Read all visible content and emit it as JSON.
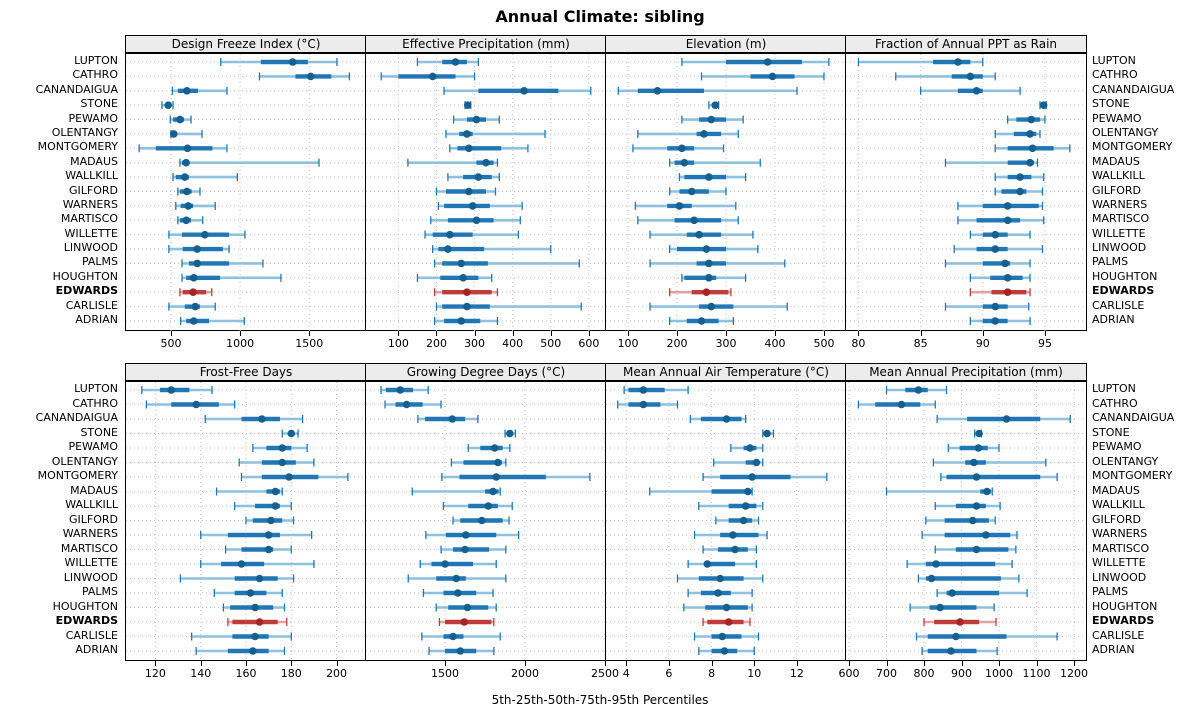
{
  "title": "Annual Climate: sibling",
  "caption": "5th-25th-50th-75th-95th Percentiles",
  "colors": {
    "blue_dot": "#15608f",
    "blue_thick": "#2077b4",
    "blue_band": "#8fc0de",
    "red_dot": "#a52525",
    "red_thick": "#bf3c3c",
    "red_band": "#dda4a4",
    "grid": "#c3c3c3",
    "strip_bg": "#ececec",
    "border": "#000000"
  },
  "chart_data": {
    "type": "dotplot-intervals",
    "percentiles": [
      5,
      25,
      50,
      75,
      95
    ],
    "legend_note": "5th-25th-50th-75th-95th Percentiles",
    "highlight_site": "EDWARDS",
    "sites": [
      "LUPTON",
      "CATHRO",
      "CANANDAIGUA",
      "STONE",
      "PEWAMO",
      "OLENTANGY",
      "MONTGOMERY",
      "MADAUS",
      "WALLKILL",
      "GILFORD",
      "WARNERS",
      "MARTISCO",
      "WILLETTE",
      "LINWOOD",
      "PALMS",
      "HOUGHTON",
      "EDWARDS",
      "CARLISLE",
      "ADRIAN"
    ],
    "panels": [
      {
        "title": "Design Freeze Index (°C)",
        "xlim": [
          175,
          1910
        ],
        "ticks": [
          500,
          1000,
          1500
        ],
        "values": [
          [
            860,
            1150,
            1380,
            1490,
            1700
          ],
          [
            1140,
            1400,
            1510,
            1660,
            1790
          ],
          [
            510,
            550,
            615,
            695,
            905
          ],
          [
            435,
            465,
            480,
            495,
            515
          ],
          [
            495,
            515,
            565,
            595,
            645
          ],
          [
            500,
            510,
            520,
            545,
            725
          ],
          [
            270,
            390,
            620,
            800,
            905
          ],
          [
            565,
            580,
            610,
            630,
            1570
          ],
          [
            515,
            535,
            600,
            630,
            980
          ],
          [
            550,
            565,
            615,
            650,
            710
          ],
          [
            535,
            570,
            625,
            660,
            820
          ],
          [
            550,
            565,
            610,
            645,
            730
          ],
          [
            485,
            580,
            745,
            920,
            1035
          ],
          [
            485,
            585,
            690,
            875,
            920
          ],
          [
            580,
            630,
            690,
            920,
            1165
          ],
          [
            580,
            610,
            665,
            855,
            1295
          ],
          [
            565,
            585,
            660,
            755,
            795
          ],
          [
            485,
            600,
            675,
            710,
            820
          ],
          [
            570,
            610,
            665,
            775,
            1030
          ]
        ]
      },
      {
        "title": "Effective Precipitation (mm)",
        "xlim": [
          15,
          645
        ],
        "ticks": [
          100,
          200,
          300,
          400,
          500,
          600
        ],
        "values": [
          [
            150,
            215,
            250,
            280,
            310
          ],
          [
            55,
            100,
            190,
            250,
            300
          ],
          [
            220,
            310,
            430,
            520,
            605
          ],
          [
            275,
            280,
            282,
            285,
            290
          ],
          [
            245,
            280,
            305,
            330,
            365
          ],
          [
            225,
            260,
            280,
            295,
            485
          ],
          [
            235,
            255,
            285,
            370,
            440
          ],
          [
            125,
            305,
            330,
            350,
            360
          ],
          [
            230,
            270,
            310,
            345,
            365
          ],
          [
            200,
            225,
            285,
            330,
            355
          ],
          [
            205,
            220,
            295,
            340,
            425
          ],
          [
            185,
            230,
            305,
            350,
            420
          ],
          [
            170,
            190,
            235,
            295,
            415
          ],
          [
            190,
            205,
            230,
            325,
            500
          ],
          [
            195,
            215,
            265,
            335,
            575
          ],
          [
            150,
            210,
            270,
            310,
            345
          ],
          [
            195,
            215,
            280,
            345,
            360
          ],
          [
            200,
            215,
            280,
            340,
            580
          ],
          [
            195,
            220,
            265,
            315,
            360
          ]
        ]
      },
      {
        "title": "Elevation (m)",
        "xlim": [
          55,
          545
        ],
        "ticks": [
          100,
          200,
          300,
          400,
          500
        ],
        "values": [
          [
            210,
            300,
            385,
            455,
            510
          ],
          [
            250,
            350,
            395,
            440,
            500
          ],
          [
            80,
            120,
            160,
            255,
            445
          ],
          [
            265,
            275,
            278,
            280,
            285
          ],
          [
            210,
            245,
            270,
            300,
            335
          ],
          [
            120,
            240,
            255,
            290,
            325
          ],
          [
            110,
            180,
            210,
            235,
            295
          ],
          [
            185,
            195,
            215,
            235,
            370
          ],
          [
            205,
            215,
            265,
            300,
            340
          ],
          [
            185,
            205,
            230,
            265,
            300
          ],
          [
            115,
            180,
            205,
            230,
            320
          ],
          [
            120,
            195,
            235,
            290,
            325
          ],
          [
            145,
            220,
            245,
            290,
            355
          ],
          [
            185,
            200,
            260,
            300,
            365
          ],
          [
            145,
            240,
            265,
            300,
            420
          ],
          [
            210,
            215,
            265,
            280,
            340
          ],
          [
            185,
            230,
            260,
            305,
            310
          ],
          [
            145,
            245,
            270,
            315,
            425
          ],
          [
            185,
            220,
            250,
            285,
            315
          ]
        ]
      },
      {
        "title": "Fraction of Annual PPT as Rain",
        "xlim": [
          79,
          98.3
        ],
        "ticks": [
          80,
          85,
          90,
          95
        ],
        "values": [
          [
            80,
            86,
            88,
            89,
            90
          ],
          [
            83,
            87.5,
            89,
            90,
            91
          ],
          [
            85,
            88,
            89.5,
            90,
            93
          ],
          [
            94.6,
            94.8,
            94.9,
            95,
            95.1
          ],
          [
            92,
            92.7,
            93.9,
            94.6,
            95
          ],
          [
            91,
            92.5,
            93.8,
            94.3,
            94.6
          ],
          [
            91,
            92,
            94,
            95.7,
            97
          ],
          [
            87,
            92,
            93.8,
            94.1,
            94.4
          ],
          [
            91,
            92,
            93,
            93.9,
            94.9
          ],
          [
            91,
            91.5,
            93,
            93.5,
            94.8
          ],
          [
            88,
            90,
            92,
            94.5,
            94.8
          ],
          [
            88,
            89.5,
            92,
            93,
            94.9
          ],
          [
            89,
            90,
            91,
            92,
            93.8
          ],
          [
            87.7,
            89.5,
            91,
            92,
            94.8
          ],
          [
            87,
            90,
            91.8,
            92.2,
            93.8
          ],
          [
            89,
            90.6,
            92,
            93.2,
            93.8
          ],
          [
            89,
            90.7,
            92,
            93.5,
            93.8
          ],
          [
            87,
            90,
            91,
            92,
            93.7
          ],
          [
            89,
            90,
            91,
            92,
            93.8
          ]
        ]
      },
      {
        "title": "Frost-Free Days",
        "xlim": [
          107,
          213
        ],
        "ticks": [
          120,
          140,
          160,
          180,
          200
        ],
        "values": [
          [
            114,
            122,
            127,
            135,
            145
          ],
          [
            116,
            127,
            138,
            148,
            155
          ],
          [
            142,
            158,
            167,
            175,
            185
          ],
          [
            176,
            179,
            180,
            181,
            183
          ],
          [
            163,
            169,
            176,
            180,
            187
          ],
          [
            157,
            167,
            176,
            182,
            190
          ],
          [
            158,
            167,
            179,
            192,
            205
          ],
          [
            147,
            169,
            173,
            175,
            176
          ],
          [
            155,
            164,
            173,
            175,
            180
          ],
          [
            160,
            163,
            171,
            176,
            181
          ],
          [
            140,
            152,
            170,
            175,
            189
          ],
          [
            151,
            158,
            170,
            172,
            180
          ],
          [
            140,
            149,
            158,
            168,
            190
          ],
          [
            131,
            155,
            166,
            174,
            181
          ],
          [
            146,
            155,
            162,
            169,
            176
          ],
          [
            150,
            153,
            164,
            172,
            177
          ],
          [
            152,
            154,
            166,
            174,
            178
          ],
          [
            136,
            154,
            164,
            170,
            180
          ],
          [
            138,
            152,
            163,
            170,
            177
          ]
        ]
      },
      {
        "title": "Growing Degree Days (°C)",
        "xlim": [
          1006,
          2506
        ],
        "ticks": [
          1500,
          2000,
          2500
        ],
        "values": [
          [
            1100,
            1130,
            1220,
            1300,
            1395
          ],
          [
            1125,
            1190,
            1260,
            1360,
            1475
          ],
          [
            1330,
            1375,
            1545,
            1625,
            1705
          ],
          [
            1875,
            1895,
            1905,
            1920,
            1940
          ],
          [
            1645,
            1720,
            1810,
            1860,
            1905
          ],
          [
            1540,
            1615,
            1830,
            1855,
            1880
          ],
          [
            1480,
            1590,
            1820,
            2130,
            2405
          ],
          [
            1295,
            1750,
            1800,
            1835,
            1845
          ],
          [
            1490,
            1645,
            1770,
            1830,
            1920
          ],
          [
            1550,
            1595,
            1730,
            1860,
            1900
          ],
          [
            1380,
            1505,
            1630,
            1820,
            1960
          ],
          [
            1475,
            1550,
            1625,
            1775,
            1880
          ],
          [
            1345,
            1415,
            1500,
            1675,
            1820
          ],
          [
            1270,
            1445,
            1570,
            1630,
            1880
          ],
          [
            1365,
            1490,
            1580,
            1695,
            1800
          ],
          [
            1445,
            1520,
            1640,
            1770,
            1820
          ],
          [
            1465,
            1500,
            1620,
            1790,
            1805
          ],
          [
            1355,
            1490,
            1550,
            1615,
            1845
          ],
          [
            1400,
            1500,
            1595,
            1695,
            1805
          ]
        ]
      },
      {
        "title": "Mean Annual Air Temperature (°C)",
        "xlim": [
          3.05,
          14.3
        ],
        "ticks": [
          4,
          6,
          8,
          10,
          12
        ],
        "values": [
          [
            3.9,
            4.1,
            4.8,
            5.8,
            6.9
          ],
          [
            3.6,
            4.1,
            4.8,
            5.6,
            6.4
          ],
          [
            7.0,
            7.5,
            8.7,
            9.4,
            9.6
          ],
          [
            10.4,
            10.5,
            10.6,
            10.7,
            10.9
          ],
          [
            8.9,
            9.5,
            9.8,
            10.1,
            10.4
          ],
          [
            8.1,
            9.6,
            10.1,
            10.2,
            10.4
          ],
          [
            7.6,
            8.4,
            9.9,
            11.7,
            13.4
          ],
          [
            5.1,
            8.0,
            9.7,
            9.8,
            9.9
          ],
          [
            7.4,
            8.8,
            9.6,
            10.1,
            10.4
          ],
          [
            8.2,
            8.8,
            9.5,
            9.9,
            10.2
          ],
          [
            7.2,
            8.4,
            9.0,
            10.2,
            10.6
          ],
          [
            7.6,
            8.3,
            9.1,
            9.7,
            10.1
          ],
          [
            6.9,
            7.7,
            7.8,
            9.1,
            10.1
          ],
          [
            6.4,
            7.4,
            8.4,
            9.5,
            10.4
          ],
          [
            6.9,
            7.5,
            8.3,
            8.9,
            9.9
          ],
          [
            6.7,
            7.7,
            8.7,
            9.7,
            9.9
          ],
          [
            7.6,
            7.8,
            8.8,
            9.5,
            9.8
          ],
          [
            7.2,
            8.0,
            8.5,
            9.4,
            10.2
          ],
          [
            7.4,
            8.0,
            8.6,
            9.2,
            10.0
          ]
        ]
      },
      {
        "title": "Mean Annual Precipitation (mm)",
        "xlim": [
          592,
          1232
        ],
        "ticks": [
          600,
          700,
          800,
          900,
          1000,
          1100,
          1200
        ],
        "values": [
          [
            700,
            750,
            785,
            810,
            860
          ],
          [
            625,
            670,
            740,
            790,
            830
          ],
          [
            835,
            915,
            1020,
            1110,
            1190
          ],
          [
            935,
            943,
            947,
            950,
            953
          ],
          [
            865,
            895,
            945,
            970,
            1000
          ],
          [
            825,
            910,
            933,
            965,
            1125
          ],
          [
            845,
            860,
            940,
            1110,
            1155
          ],
          [
            700,
            950,
            968,
            978,
            982
          ],
          [
            830,
            885,
            940,
            965,
            1003
          ],
          [
            805,
            855,
            930,
            973,
            990
          ],
          [
            795,
            855,
            965,
            1030,
            1048
          ],
          [
            830,
            885,
            940,
            1025,
            1045
          ],
          [
            755,
            805,
            832,
            990,
            1035
          ],
          [
            785,
            805,
            820,
            1005,
            1053
          ],
          [
            835,
            860,
            875,
            1000,
            1075
          ],
          [
            763,
            815,
            843,
            940,
            987
          ],
          [
            800,
            827,
            896,
            947,
            992
          ],
          [
            780,
            810,
            885,
            1020,
            1155
          ],
          [
            795,
            810,
            872,
            940,
            995
          ]
        ]
      }
    ]
  }
}
